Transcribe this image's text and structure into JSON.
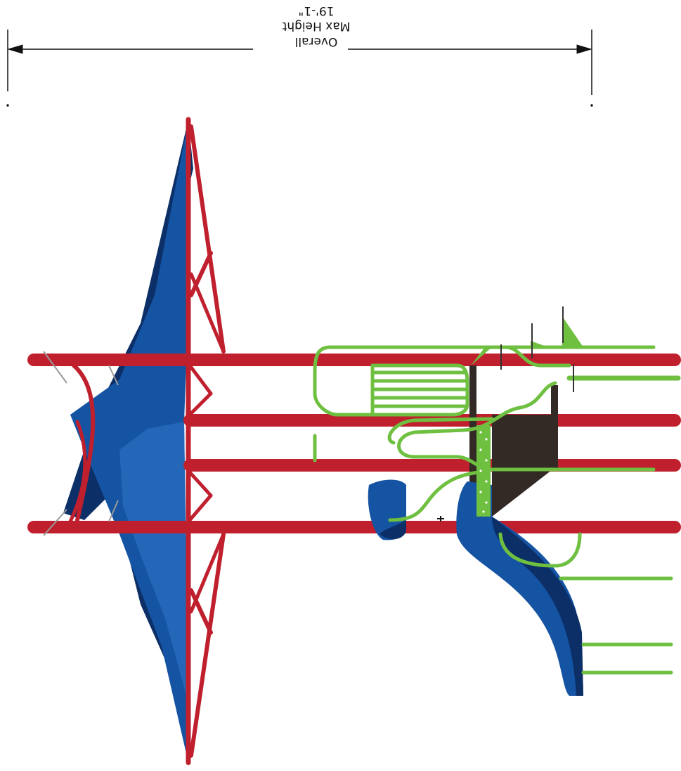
{
  "dimension": {
    "line1": "Overall",
    "line2": "Max Height",
    "line3": "19'-1\""
  },
  "colors": {
    "frame_red": "#c0202e",
    "shade_blue": "#1553a3",
    "shade_dark_blue": "#0b2f66",
    "rail_green": "#6fc041",
    "deck_dark": "#332a26",
    "cable_gray": "#9a9a9a"
  }
}
